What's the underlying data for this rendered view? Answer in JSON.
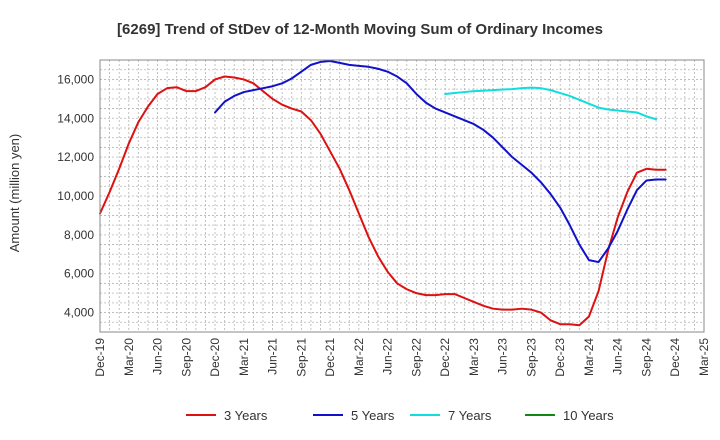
{
  "chart_data": {
    "type": "line",
    "title": "[6269]  Trend of StDev of 12-Month Moving Sum of Ordinary Incomes",
    "xlabel": "",
    "ylabel": "Amount (million yen)",
    "x_tick_labels": [
      "Dec-19",
      "Mar-20",
      "Jun-20",
      "Sep-20",
      "Dec-20",
      "Mar-21",
      "Jun-21",
      "Sep-21",
      "Dec-21",
      "Mar-22",
      "Jun-22",
      "Sep-22",
      "Dec-22",
      "Mar-23",
      "Jun-23",
      "Sep-23",
      "Dec-23",
      "Mar-24",
      "Jun-24",
      "Sep-24",
      "Dec-24",
      "Mar-25"
    ],
    "x_range_months": [
      0,
      63
    ],
    "y_ticks": [
      4000,
      6000,
      8000,
      10000,
      12000,
      14000,
      16000
    ],
    "y_tick_labels": [
      "4,000",
      "6,000",
      "8,000",
      "10,000",
      "12,000",
      "14,000",
      "16,000"
    ],
    "ylim": [
      3000,
      17000
    ],
    "grid": true,
    "legend_position": "bottom",
    "series": [
      {
        "name": "3 Years",
        "color": "#dd1111",
        "start_month": 0,
        "values": [
          9100,
          10200,
          11400,
          12700,
          13800,
          14600,
          15250,
          15550,
          15600,
          15400,
          15400,
          15600,
          16000,
          16150,
          16100,
          16000,
          15800,
          15400,
          15000,
          14700,
          14500,
          14350,
          13900,
          13200,
          12300,
          11400,
          10300,
          9100,
          7900,
          6900,
          6100,
          5500,
          5200,
          5000,
          4900,
          4900,
          4950,
          4950,
          4750,
          4550,
          4350,
          4200,
          4150,
          4150,
          4200,
          4150,
          4000,
          3600,
          3400,
          3400,
          3350,
          3800,
          5100,
          7200,
          8900,
          10200,
          11200,
          11400,
          11350,
          11350
        ]
      },
      {
        "name": "5 Years",
        "color": "#1111cc",
        "start_month": 12,
        "values": [
          14300,
          14850,
          15150,
          15350,
          15450,
          15550,
          15650,
          15800,
          16050,
          16400,
          16750,
          16900,
          16950,
          16850,
          16750,
          16700,
          16650,
          16550,
          16400,
          16150,
          15800,
          15250,
          14800,
          14500,
          14300,
          14100,
          13900,
          13700,
          13400,
          13000,
          12500,
          12000,
          11600,
          11200,
          10700,
          10100,
          9400,
          8500,
          7500,
          6700,
          6600,
          7300,
          8200,
          9300,
          10300,
          10800,
          10850,
          10850
        ]
      },
      {
        "name": "7 Years",
        "color": "#11dddd",
        "start_month": 36,
        "values": [
          15250,
          15300,
          15350,
          15400,
          15420,
          15450,
          15480,
          15500,
          15550,
          15580,
          15550,
          15450,
          15300,
          15150,
          14950,
          14750,
          14550,
          14450,
          14400,
          14350,
          14300,
          14100,
          13950
        ]
      },
      {
        "name": "10 Years",
        "color": "#118811",
        "start_month": 0,
        "values": []
      }
    ]
  }
}
